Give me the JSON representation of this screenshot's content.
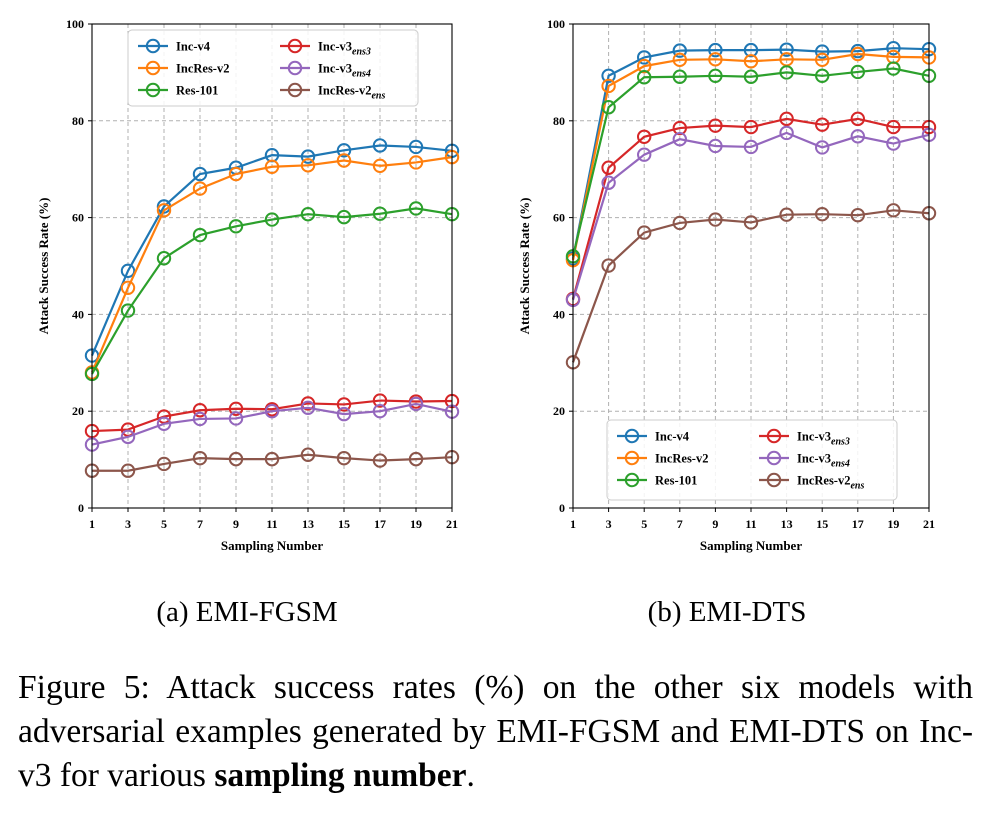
{
  "chart_data": [
    {
      "type": "line",
      "ylabel": "Attack Success Rate (%)",
      "xlabel": "Sampling Number",
      "x": [
        1,
        3,
        5,
        7,
        9,
        11,
        13,
        15,
        17,
        19,
        21
      ],
      "ylim": [
        0,
        100
      ],
      "yticks": [
        0,
        20,
        40,
        60,
        80,
        100
      ],
      "grid": true,
      "legend_position": "top",
      "series": [
        {
          "name": "Inc-v4",
          "base": "Inc-v4",
          "sub": "",
          "color": "#1f77b4",
          "values": [
            31.5,
            49,
            62.3,
            69,
            70.3,
            72.9,
            72.6,
            73.9,
            74.9,
            74.6,
            73.8
          ]
        },
        {
          "name": "IncRes-v2",
          "base": "IncRes-v2",
          "sub": "",
          "color": "#ff7f0e",
          "values": [
            28,
            45.5,
            61.5,
            66,
            69,
            70.5,
            70.8,
            71.8,
            70.7,
            71.4,
            72.5
          ]
        },
        {
          "name": "Res-101",
          "base": "Res-101",
          "sub": "",
          "color": "#2ca02c",
          "values": [
            27.7,
            40.8,
            51.6,
            56.4,
            58.2,
            59.6,
            60.7,
            60.1,
            60.8,
            61.9,
            60.7
          ]
        },
        {
          "name": "Inc-v3ens3",
          "base": "Inc-v3",
          "sub": "ens3",
          "color": "#d62728",
          "values": [
            15.9,
            16.2,
            18.9,
            20.2,
            20.5,
            20.4,
            21.6,
            21.4,
            22.2,
            22,
            22.1
          ]
        },
        {
          "name": "Inc-v3ens4",
          "base": "Inc-v3",
          "sub": "ens4",
          "color": "#9467bd",
          "values": [
            13.1,
            14.7,
            17.4,
            18.4,
            18.5,
            20,
            20.7,
            19.4,
            20,
            21.5,
            19.9
          ]
        },
        {
          "name": "IncRes-v2ens",
          "base": "IncRes-v2",
          "sub": "ens",
          "color": "#8c564b",
          "values": [
            7.7,
            7.7,
            9.1,
            10.3,
            10.1,
            10.1,
            11,
            10.3,
            9.8,
            10.1,
            10.5
          ]
        }
      ]
    },
    {
      "type": "line",
      "ylabel": "Attack Success Rate (%)",
      "xlabel": "Sampling Number",
      "x": [
        1,
        3,
        5,
        7,
        9,
        11,
        13,
        15,
        17,
        19,
        21
      ],
      "ylim": [
        0,
        100
      ],
      "yticks": [
        0,
        20,
        40,
        60,
        80,
        100
      ],
      "grid": true,
      "legend_position": "bottom-right",
      "series": [
        {
          "name": "Inc-v4",
          "base": "Inc-v4",
          "sub": "",
          "color": "#1f77b4",
          "values": [
            51.5,
            89.3,
            93.1,
            94.5,
            94.6,
            94.6,
            94.7,
            94.3,
            94.4,
            95,
            94.8
          ]
        },
        {
          "name": "IncRes-v2",
          "base": "IncRes-v2",
          "sub": "",
          "color": "#ff7f0e",
          "values": [
            51.2,
            87.2,
            91.3,
            92.6,
            92.7,
            92.3,
            92.7,
            92.6,
            93.8,
            93.2,
            93.1
          ]
        },
        {
          "name": "Res-101",
          "base": "Res-101",
          "sub": "",
          "color": "#2ca02c",
          "values": [
            52,
            82.8,
            89,
            89.1,
            89.3,
            89.1,
            90,
            89.3,
            90.1,
            90.8,
            89.3
          ]
        },
        {
          "name": "Inc-v3ens3",
          "base": "Inc-v3",
          "sub": "ens3",
          "color": "#d62728",
          "values": [
            43.2,
            70.3,
            76.7,
            78.5,
            79,
            78.7,
            80.4,
            79.2,
            80.4,
            78.7,
            78.7
          ]
        },
        {
          "name": "Inc-v3ens4",
          "base": "Inc-v3",
          "sub": "ens4",
          "color": "#9467bd",
          "values": [
            43,
            67.2,
            73,
            76.2,
            74.8,
            74.6,
            77.5,
            74.5,
            76.8,
            75.3,
            77.1
          ]
        },
        {
          "name": "IncRes-v2ens",
          "base": "IncRes-v2",
          "sub": "ens",
          "color": "#8c564b",
          "values": [
            30.1,
            50.1,
            56.9,
            58.9,
            59.6,
            59,
            60.6,
            60.7,
            60.5,
            61.5,
            60.9
          ]
        }
      ]
    }
  ],
  "subcaptions": {
    "a": "(a) EMI-FGSM",
    "b": "(b) EMI-DTS"
  },
  "caption": {
    "prefix": "Figure 5:",
    "text": " Attack success rates (%) on the other six models with adversarial examples generated by EMI-FGSM and EMI-DTS on Inc-v3 for various ",
    "bold": "sampling number",
    "suffix": "."
  }
}
